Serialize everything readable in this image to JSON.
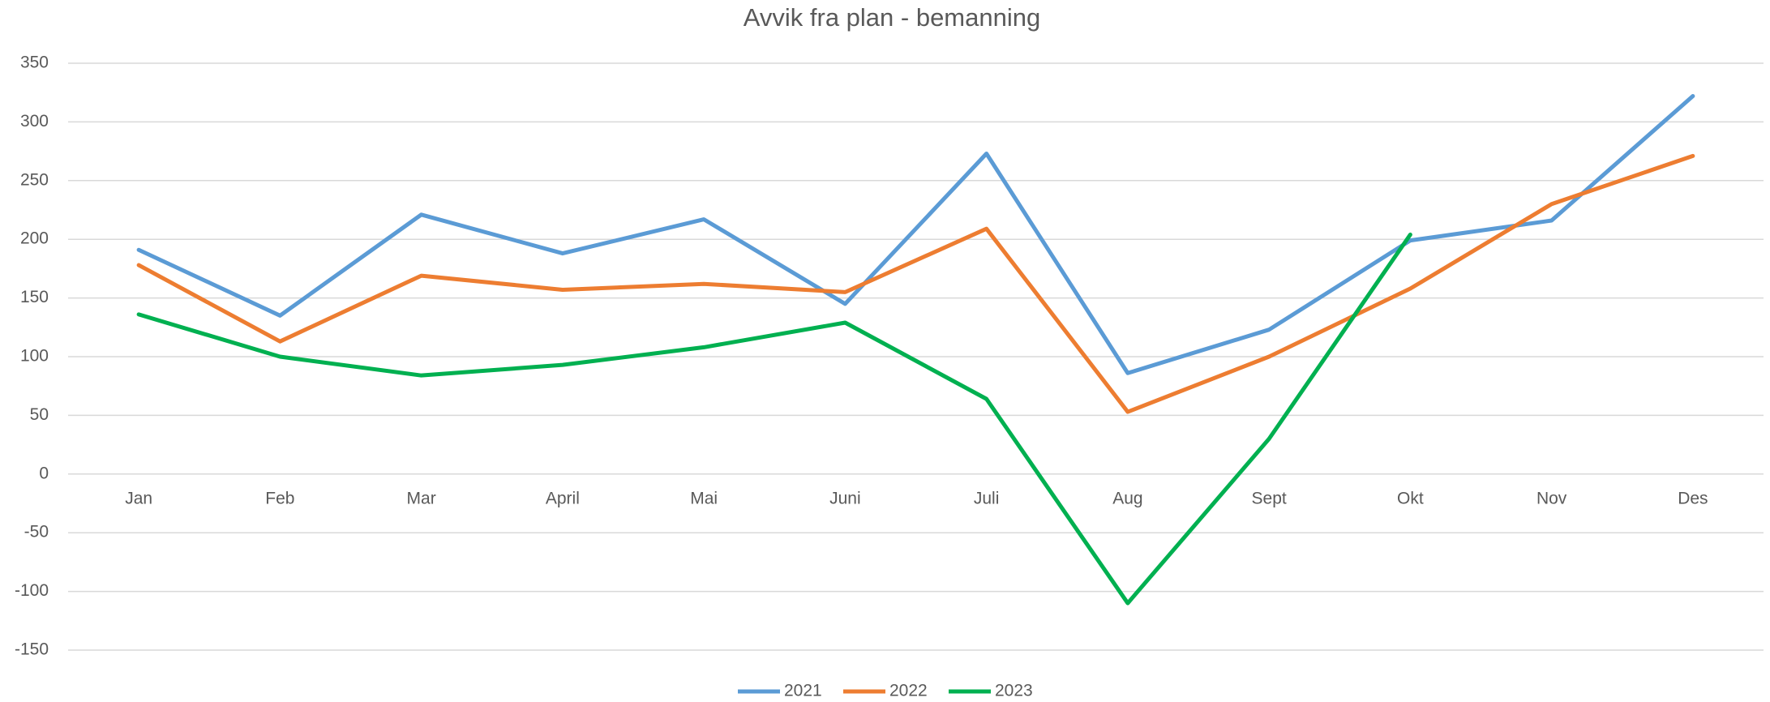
{
  "chart_data": {
    "type": "line",
    "title": "Avvik fra plan - bemanning",
    "categories": [
      "Jan",
      "Feb",
      "Mar",
      "April",
      "Mai",
      "Juni",
      "Juli",
      "Aug",
      "Sept",
      "Okt",
      "Nov",
      "Des"
    ],
    "series": [
      {
        "name": "2021",
        "color": "#5b9bd5",
        "values": [
          191,
          135,
          221,
          188,
          217,
          145,
          273,
          86,
          123,
          199,
          216,
          322
        ]
      },
      {
        "name": "2022",
        "color": "#ed7d31",
        "values": [
          178,
          113,
          169,
          157,
          162,
          155,
          209,
          53,
          100,
          158,
          230,
          271
        ]
      },
      {
        "name": "2023",
        "color": "#00b050",
        "values": [
          136,
          100,
          84,
          93,
          108,
          129,
          64,
          -110,
          30,
          204,
          null,
          null
        ]
      }
    ],
    "ylim": [
      -150,
      350
    ],
    "yticks": [
      -150,
      -100,
      -50,
      0,
      50,
      100,
      150,
      200,
      250,
      300,
      350
    ],
    "grid": true,
    "legend": "bottom"
  }
}
